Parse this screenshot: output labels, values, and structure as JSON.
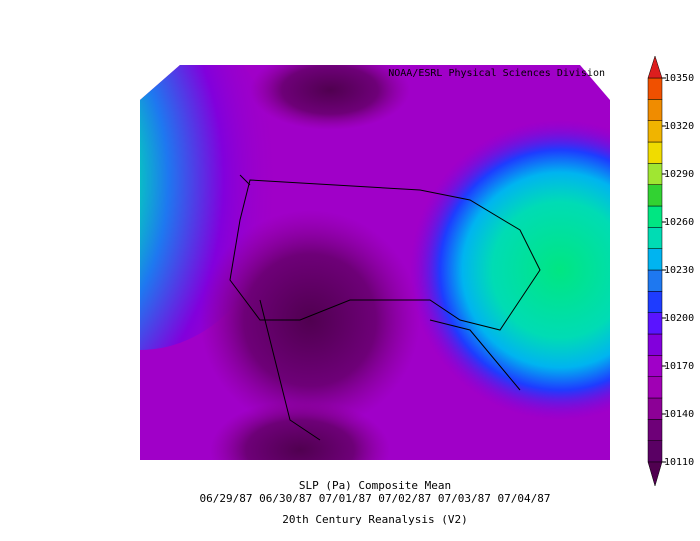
{
  "chart_data": {
    "type": "contour-map",
    "source": "NOAA/ESRL Physical Sciences Division",
    "title": "SLP (Pa) Composite Mean",
    "subtitle": "06/29/87 06/30/87 07/01/87 07/02/87 07/03/87 07/04/87",
    "footer": "20th Century Reanalysis (V2)",
    "colorbar": {
      "lim": [
        10110,
        10350
      ],
      "ticks": [
        10110,
        10140,
        10170,
        10200,
        10230,
        10260,
        10290,
        10320,
        10350
      ],
      "colors": [
        "#5a0064",
        "#6e0078",
        "#8c0096",
        "#a000b4",
        "#a000c8",
        "#8200dc",
        "#5a14ff",
        "#1e3cff",
        "#1e78f0",
        "#00b4f0",
        "#00dcb4",
        "#00e682",
        "#32d232",
        "#a0e632",
        "#f0dc00",
        "#f0b400",
        "#f08c00",
        "#f05000"
      ],
      "under_color": "#500050",
      "over_color": "#dc1e1e"
    }
  }
}
